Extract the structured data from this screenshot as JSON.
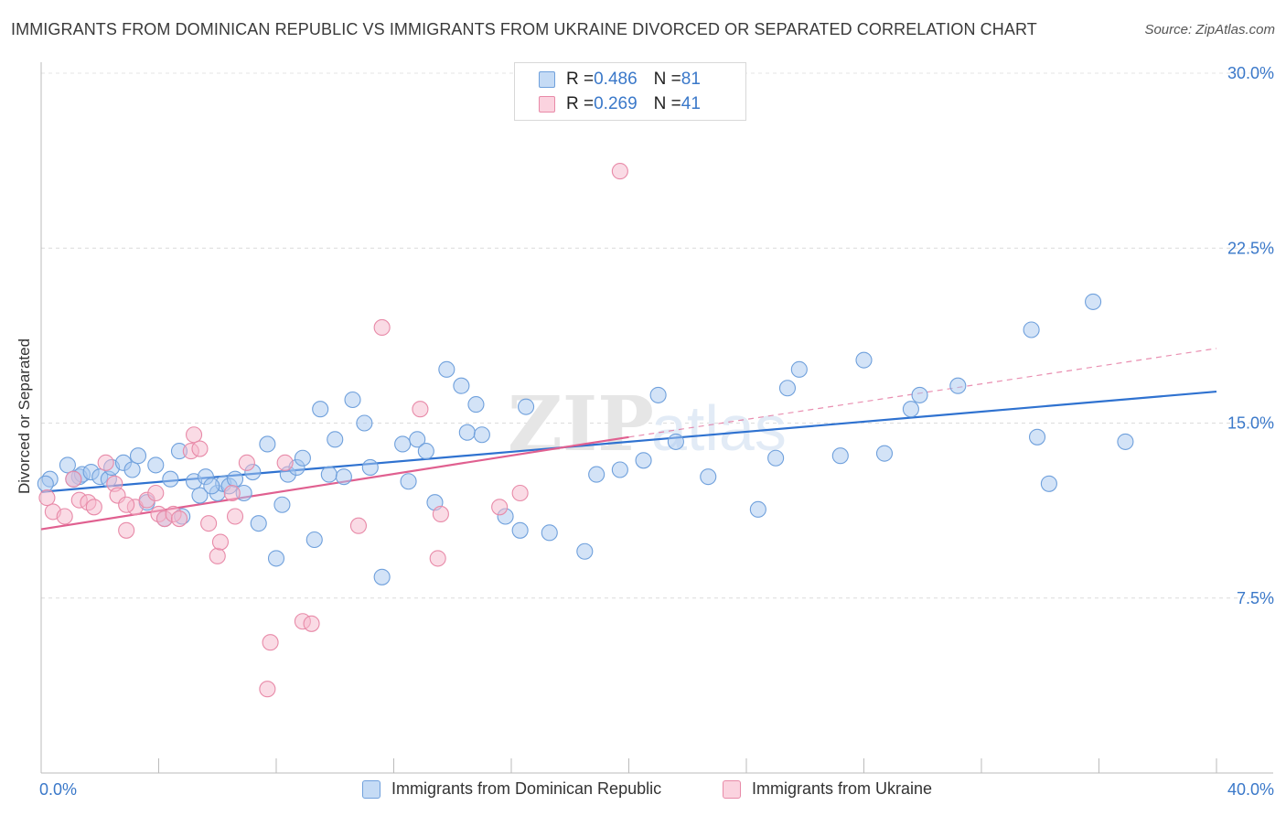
{
  "title": "IMMIGRANTS FROM DOMINICAN REPUBLIC VS IMMIGRANTS FROM UKRAINE DIVORCED OR SEPARATED CORRELATION CHART",
  "source": "Source: ZipAtlas.com",
  "watermark": "ZIPatlas",
  "legend_top": [
    {
      "r_label": "R = ",
      "r_value": "0.486",
      "n_label": "N = ",
      "n_value": "81",
      "color": "#a8c8f0"
    },
    {
      "r_label": "R = ",
      "r_value": "0.269",
      "n_label": "N = ",
      "n_value": "41",
      "color": "#f5b8cb"
    }
  ],
  "legend_bottom": [
    {
      "label": "Immigrants from Dominican Republic",
      "color": "#a8c8f0"
    },
    {
      "label": "Immigrants from Ukraine",
      "color": "#f5b8cb"
    }
  ],
  "chart_data": {
    "type": "scatter",
    "xlabel": "",
    "ylabel": "Divorced or Separated",
    "xlim": [
      0,
      40
    ],
    "ylim": [
      0,
      30
    ],
    "x_tick_labels": [
      "0.0%",
      "40.0%"
    ],
    "y_ticks": [
      7.5,
      15.0,
      22.5,
      30.0
    ],
    "y_tick_labels": [
      "7.5%",
      "15.0%",
      "22.5%",
      "30.0%"
    ],
    "grid": true,
    "series": [
      {
        "name": "Immigrants from Dominican Republic",
        "color": "#6fa0dc",
        "fill": "#a8c8f0",
        "trend": {
          "x0": 0,
          "y0": 12.05,
          "x1": 40,
          "y1": 16.35,
          "color": "#2f72d0"
        },
        "points": [
          [
            0.3,
            12.6
          ],
          [
            0.9,
            13.2
          ],
          [
            1.3,
            12.7
          ],
          [
            1.4,
            12.8
          ],
          [
            1.7,
            12.9
          ],
          [
            2.0,
            12.7
          ],
          [
            2.3,
            12.6
          ],
          [
            2.4,
            13.1
          ],
          [
            2.8,
            13.3
          ],
          [
            3.1,
            13.0
          ],
          [
            3.3,
            13.6
          ],
          [
            3.6,
            11.6
          ],
          [
            3.9,
            13.2
          ],
          [
            4.2,
            10.9
          ],
          [
            4.4,
            12.6
          ],
          [
            4.7,
            13.8
          ],
          [
            4.8,
            11.0
          ],
          [
            5.2,
            12.5
          ],
          [
            5.4,
            11.9
          ],
          [
            5.6,
            12.7
          ],
          [
            6.0,
            12.0
          ],
          [
            6.2,
            12.4
          ],
          [
            6.4,
            12.3
          ],
          [
            6.6,
            12.6
          ],
          [
            6.9,
            12.0
          ],
          [
            7.2,
            12.9
          ],
          [
            7.4,
            10.7
          ],
          [
            7.7,
            14.1
          ],
          [
            8.0,
            9.2
          ],
          [
            8.2,
            11.5
          ],
          [
            8.4,
            12.8
          ],
          [
            8.7,
            13.1
          ],
          [
            8.9,
            13.5
          ],
          [
            9.3,
            10.0
          ],
          [
            9.5,
            15.6
          ],
          [
            9.8,
            12.8
          ],
          [
            10.0,
            14.3
          ],
          [
            10.3,
            12.7
          ],
          [
            10.6,
            16.0
          ],
          [
            11.0,
            15.0
          ],
          [
            11.2,
            13.1
          ],
          [
            11.6,
            8.4
          ],
          [
            12.3,
            14.1
          ],
          [
            12.5,
            12.5
          ],
          [
            12.8,
            14.3
          ],
          [
            13.1,
            13.8
          ],
          [
            13.4,
            11.6
          ],
          [
            13.8,
            17.3
          ],
          [
            14.3,
            16.6
          ],
          [
            14.5,
            14.6
          ],
          [
            14.8,
            15.8
          ],
          [
            15.0,
            14.5
          ],
          [
            15.8,
            11.0
          ],
          [
            16.3,
            10.4
          ],
          [
            16.5,
            15.7
          ],
          [
            17.3,
            10.3
          ],
          [
            18.5,
            9.5
          ],
          [
            18.9,
            12.8
          ],
          [
            19.7,
            13.0
          ],
          [
            20.5,
            13.4
          ],
          [
            21.0,
            16.2
          ],
          [
            21.6,
            14.2
          ],
          [
            22.7,
            12.7
          ],
          [
            24.4,
            11.3
          ],
          [
            25.0,
            13.5
          ],
          [
            25.4,
            16.5
          ],
          [
            25.8,
            17.3
          ],
          [
            27.2,
            13.6
          ],
          [
            28.0,
            17.7
          ],
          [
            28.7,
            13.7
          ],
          [
            29.6,
            15.6
          ],
          [
            29.9,
            16.2
          ],
          [
            31.2,
            16.6
          ],
          [
            33.7,
            19.0
          ],
          [
            33.9,
            14.4
          ],
          [
            34.3,
            12.4
          ],
          [
            35.8,
            20.2
          ],
          [
            36.9,
            14.2
          ],
          [
            0.15,
            12.4
          ],
          [
            1.1,
            12.6
          ],
          [
            5.8,
            12.3
          ]
        ]
      },
      {
        "name": "Immigrants from Ukraine",
        "color": "#e88aa8",
        "fill": "#f5b8cb",
        "trend": {
          "x0": 0,
          "y0": 10.45,
          "x1": 20,
          "y1": 14.4,
          "color": "#e06090"
        },
        "trend_extension": {
          "x0": 20,
          "y0": 14.4,
          "x1": 40,
          "y1": 18.2
        },
        "points": [
          [
            0.4,
            11.2
          ],
          [
            0.8,
            11.0
          ],
          [
            1.1,
            12.6
          ],
          [
            1.3,
            11.7
          ],
          [
            1.6,
            11.6
          ],
          [
            1.8,
            11.4
          ],
          [
            2.2,
            13.3
          ],
          [
            2.5,
            12.4
          ],
          [
            2.6,
            11.9
          ],
          [
            2.9,
            10.4
          ],
          [
            3.2,
            11.4
          ],
          [
            3.6,
            11.7
          ],
          [
            4.0,
            11.1
          ],
          [
            4.2,
            10.9
          ],
          [
            4.5,
            11.1
          ],
          [
            4.7,
            10.9
          ],
          [
            5.1,
            13.8
          ],
          [
            5.2,
            14.5
          ],
          [
            5.4,
            13.9
          ],
          [
            5.7,
            10.7
          ],
          [
            6.0,
            9.3
          ],
          [
            6.1,
            9.9
          ],
          [
            6.5,
            12.0
          ],
          [
            6.6,
            11.0
          ],
          [
            7.0,
            13.3
          ],
          [
            7.8,
            5.6
          ],
          [
            7.7,
            3.6
          ],
          [
            8.3,
            13.3
          ],
          [
            8.9,
            6.5
          ],
          [
            9.2,
            6.4
          ],
          [
            10.8,
            10.6
          ],
          [
            11.6,
            19.1
          ],
          [
            12.9,
            15.6
          ],
          [
            13.5,
            9.2
          ],
          [
            13.6,
            11.1
          ],
          [
            15.6,
            11.4
          ],
          [
            16.3,
            12.0
          ],
          [
            19.7,
            25.8
          ],
          [
            3.9,
            12.0
          ],
          [
            0.2,
            11.8
          ],
          [
            2.9,
            11.5
          ]
        ]
      }
    ]
  }
}
